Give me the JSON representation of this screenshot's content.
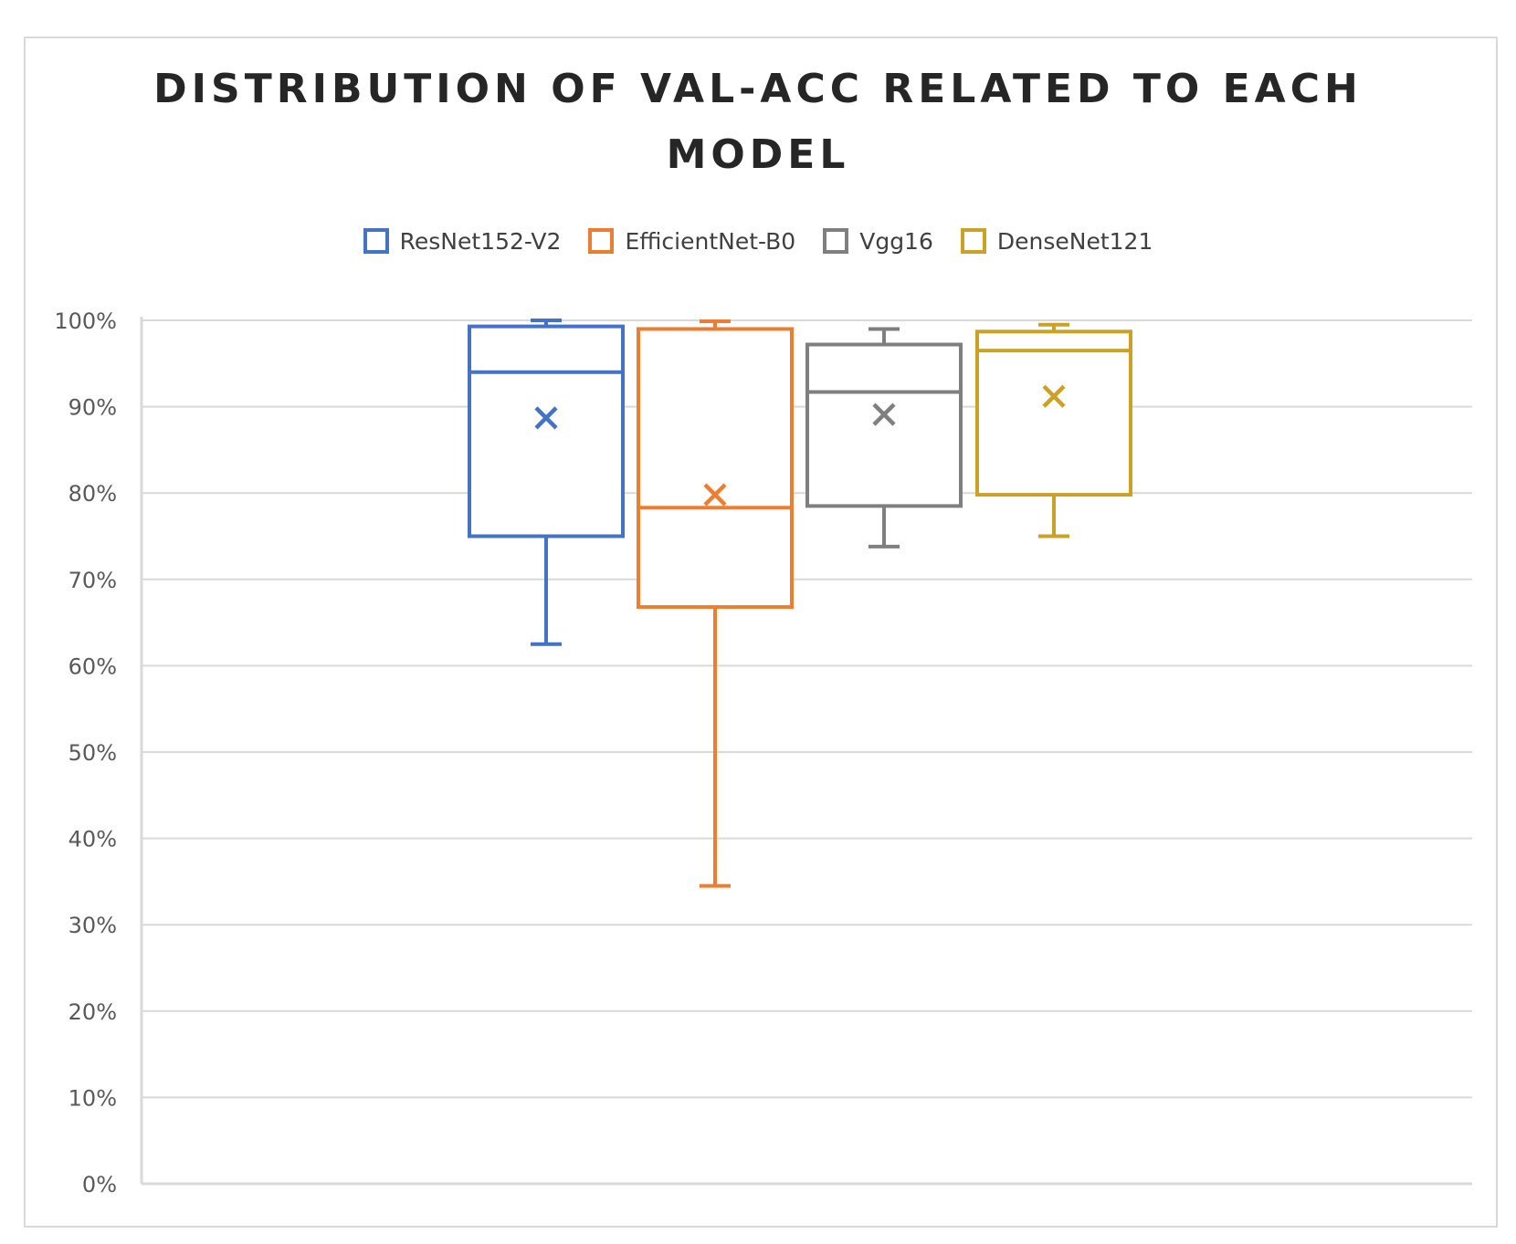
{
  "chart_data": {
    "type": "box",
    "title": "DISTRIBUTION OF VAL-ACC RELATED TO EACH MODEL",
    "xlabel": "",
    "ylabel": "",
    "ylim": [
      0,
      100
    ],
    "y_ticks": [
      0,
      10,
      20,
      30,
      40,
      50,
      60,
      70,
      80,
      90,
      100
    ],
    "y_tick_labels": [
      "0%",
      "10%",
      "20%",
      "30%",
      "40%",
      "50%",
      "60%",
      "70%",
      "80%",
      "90%",
      "100%"
    ],
    "grid": true,
    "legend_position": "top",
    "series": [
      {
        "name": "ResNet152-V2",
        "color": "#4472C4",
        "min": 62.5,
        "q1": 75,
        "median": 94,
        "q3": 99.3,
        "max": 100,
        "mean": 88.7
      },
      {
        "name": "EfficientNet-B0",
        "color": "#ED7D31",
        "min": 34.5,
        "q1": 66.8,
        "median": 78.3,
        "q3": 99,
        "max": 99.9,
        "mean": 79.8
      },
      {
        "name": "Vgg16",
        "color": "#7F7F7F",
        "min": 73.8,
        "q1": 78.5,
        "median": 91.7,
        "q3": 97.2,
        "max": 99,
        "mean": 89.1
      },
      {
        "name": "DenseNet121",
        "color": "#C9A227",
        "min": 75,
        "q1": 79.8,
        "median": 96.5,
        "q3": 98.7,
        "max": 99.5,
        "mean": 91.2
      }
    ]
  }
}
